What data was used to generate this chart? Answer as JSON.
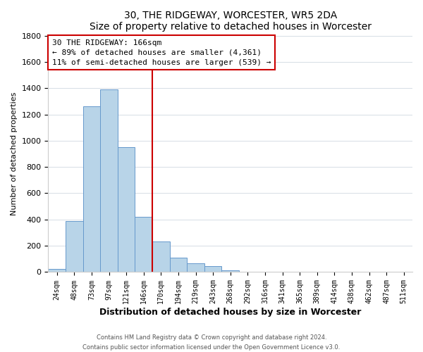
{
  "title": "30, THE RIDGEWAY, WORCESTER, WR5 2DA",
  "subtitle": "Size of property relative to detached houses in Worcester",
  "xlabel": "Distribution of detached houses by size in Worcester",
  "ylabel": "Number of detached properties",
  "bin_labels": [
    "24sqm",
    "48sqm",
    "73sqm",
    "97sqm",
    "121sqm",
    "146sqm",
    "170sqm",
    "194sqm",
    "219sqm",
    "243sqm",
    "268sqm",
    "292sqm",
    "316sqm",
    "341sqm",
    "365sqm",
    "389sqm",
    "414sqm",
    "438sqm",
    "462sqm",
    "487sqm",
    "511sqm"
  ],
  "bar_heights": [
    25,
    390,
    1260,
    1390,
    950,
    420,
    235,
    110,
    65,
    48,
    15,
    5,
    2,
    0,
    0,
    0,
    0,
    0,
    0,
    0,
    0
  ],
  "bar_color": "#b8d4e8",
  "bar_edge_color": "#6699cc",
  "vline_x_idx": 6,
  "vline_color": "#cc0000",
  "annotation_title": "30 THE RIDGEWAY: 166sqm",
  "annotation_line1": "← 89% of detached houses are smaller (4,361)",
  "annotation_line2": "11% of semi-detached houses are larger (539) →",
  "annotation_box_color": "#ffffff",
  "annotation_box_edge": "#cc0000",
  "ylim": [
    0,
    1800
  ],
  "yticks": [
    0,
    200,
    400,
    600,
    800,
    1000,
    1200,
    1400,
    1600,
    1800
  ],
  "footer_line1": "Contains HM Land Registry data © Crown copyright and database right 2024.",
  "footer_line2": "Contains public sector information licensed under the Open Government Licence v3.0.",
  "title_fontsize": 10,
  "subtitle_fontsize": 9,
  "xlabel_fontsize": 9,
  "ylabel_fontsize": 8,
  "tick_fontsize": 7,
  "annotation_fontsize": 8,
  "footer_fontsize": 6,
  "grid_color": "#d0d8e0",
  "grid_alpha": 1.0
}
